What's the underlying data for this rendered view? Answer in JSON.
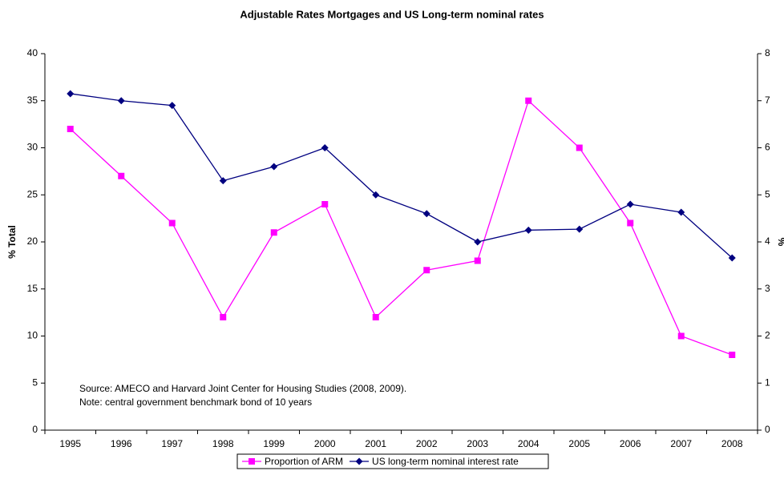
{
  "chart_data": {
    "type": "line",
    "title": "Adjustable Rates Mortgages and US Long-term nominal rates",
    "y_label": "% Total",
    "y2_label": "%",
    "annotations": [
      "Source: AMECO and Harvard Joint Center for Housing Studies (2008, 2009).",
      "Note: central government benchmark bond of 10 years"
    ],
    "categories": [
      "1995",
      "1996",
      "1997",
      "1998",
      "1999",
      "2000",
      "2001",
      "2002",
      "2003",
      "2004",
      "2005",
      "2006",
      "2007",
      "2008"
    ],
    "series": [
      {
        "name": "Proportion of ARM",
        "color": "#ff00ff",
        "marker": "square",
        "axis": "y",
        "values": [
          32,
          27,
          22,
          12,
          21,
          24,
          12,
          17,
          18,
          35,
          30,
          22,
          10,
          8
        ]
      },
      {
        "name": "US long-term nominal interest rate",
        "color": "#000080",
        "marker": "diamond",
        "axis": "y2",
        "values": [
          7.15,
          7.0,
          6.9,
          5.3,
          5.6,
          6.0,
          5.0,
          4.6,
          4.0,
          4.25,
          4.27,
          4.8,
          4.63,
          3.66
        ]
      }
    ],
    "ylim": [
      0,
      40
    ],
    "yticks": [
      0,
      5,
      10,
      15,
      20,
      25,
      30,
      35,
      40
    ],
    "y2lim": [
      0,
      8
    ],
    "y2ticks": [
      0,
      1,
      2,
      3,
      4,
      5,
      6,
      7,
      8
    ],
    "grid": false,
    "legend": "bottom"
  }
}
